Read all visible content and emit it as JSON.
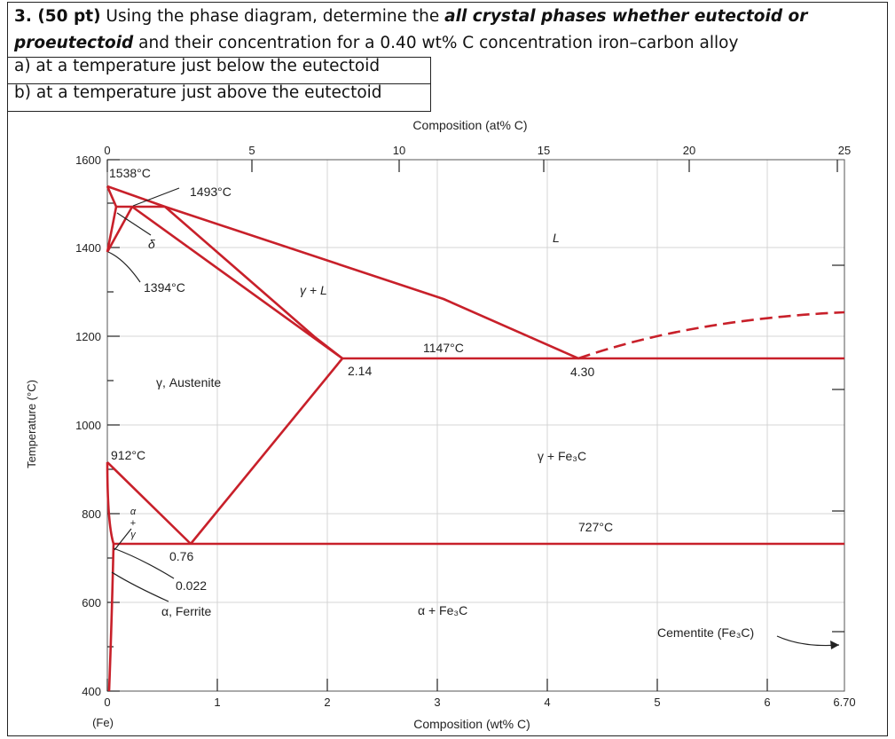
{
  "question": {
    "number": "3. (50 pt)",
    "line1_a": " Using the phase diagram, determine the ",
    "line1_emph": "all crystal phases whether eutectoid or",
    "line2_emph": "proeutectoid",
    "line2_b": " and their concentration for a 0.40 wt% C concentration iron–carbon alloy",
    "part_a": "a) at a temperature just below the eutectoid",
    "part_b": "b) at a temperature just above the eutectoid"
  },
  "diagram": {
    "top_axis_title": "Composition (at% C)",
    "top_ticks": [
      "0",
      "5",
      "10",
      "15",
      "20",
      "25"
    ],
    "bottom_axis_title": "Composition (wt% C)",
    "bottom_ticks": [
      "0",
      "1",
      "2",
      "3",
      "4",
      "5",
      "6",
      "6.70"
    ],
    "bottom_sublabel": "(Fe)",
    "y_axis_title": "Temperature (°C)",
    "y_ticks": [
      "1600",
      "1400",
      "1200",
      "1000",
      "800",
      "600",
      "400"
    ],
    "labels": {
      "t1538": "1538°C",
      "t1493": "1493°C",
      "delta": "δ",
      "liquid": "L",
      "t1394": "1394°C",
      "gamma_l": "γ + L",
      "t1147": "1147°C",
      "c214": "2.14",
      "c430": "4.30",
      "austenite": "γ, Austenite",
      "t912": "912°C",
      "gamma_fe3c": "γ + Fe₃C",
      "t727": "727°C",
      "alpha_gamma_a": "α",
      "alpha_gamma_plus": "+",
      "alpha_gamma_g": "γ",
      "c076": "0.76",
      "c0022": "0.022",
      "ferrite": "α, Ferrite",
      "alpha_fe3c": "α + Fe₃C",
      "cementite": "Cementite (Fe₃C)"
    },
    "line_color": "#c8202a",
    "grid_color": "#d4d4d4"
  }
}
